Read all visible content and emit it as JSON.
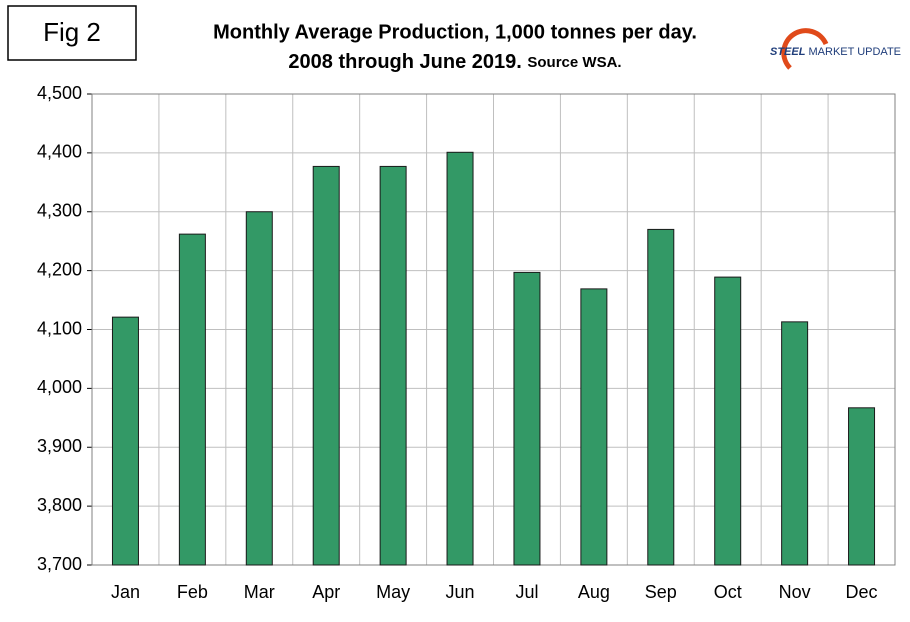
{
  "chart_data": {
    "type": "bar",
    "fig_label": "Fig 2",
    "title": "Monthly Average Production, 1,000 tonnes per day.",
    "subtitle": "2008 through June 2019.",
    "source": "Source WSA.",
    "logo": {
      "bold": "STEEL",
      "rest": "MARKET UPDATE"
    },
    "categories": [
      "Jan",
      "Feb",
      "Mar",
      "Apr",
      "May",
      "Jun",
      "Jul",
      "Aug",
      "Sep",
      "Oct",
      "Nov",
      "Dec"
    ],
    "values": [
      4121,
      4262,
      4300,
      4377,
      4377,
      4401,
      4197,
      4169,
      4270,
      4189,
      4113,
      3967
    ],
    "color": "#339966",
    "ylim": [
      3700,
      4500
    ],
    "yticks": [
      {
        "value": 3700,
        "label": "3,700"
      },
      {
        "value": 3800,
        "label": "3,800"
      },
      {
        "value": 3900,
        "label": "3,900"
      },
      {
        "value": 4000,
        "label": "4,000"
      },
      {
        "value": 4100,
        "label": "4,100"
      },
      {
        "value": 4200,
        "label": "4,200"
      },
      {
        "value": 4300,
        "label": "4,300"
      },
      {
        "value": 4400,
        "label": "4,400"
      },
      {
        "value": 4500,
        "label": "4,500"
      }
    ],
    "grid": true
  }
}
